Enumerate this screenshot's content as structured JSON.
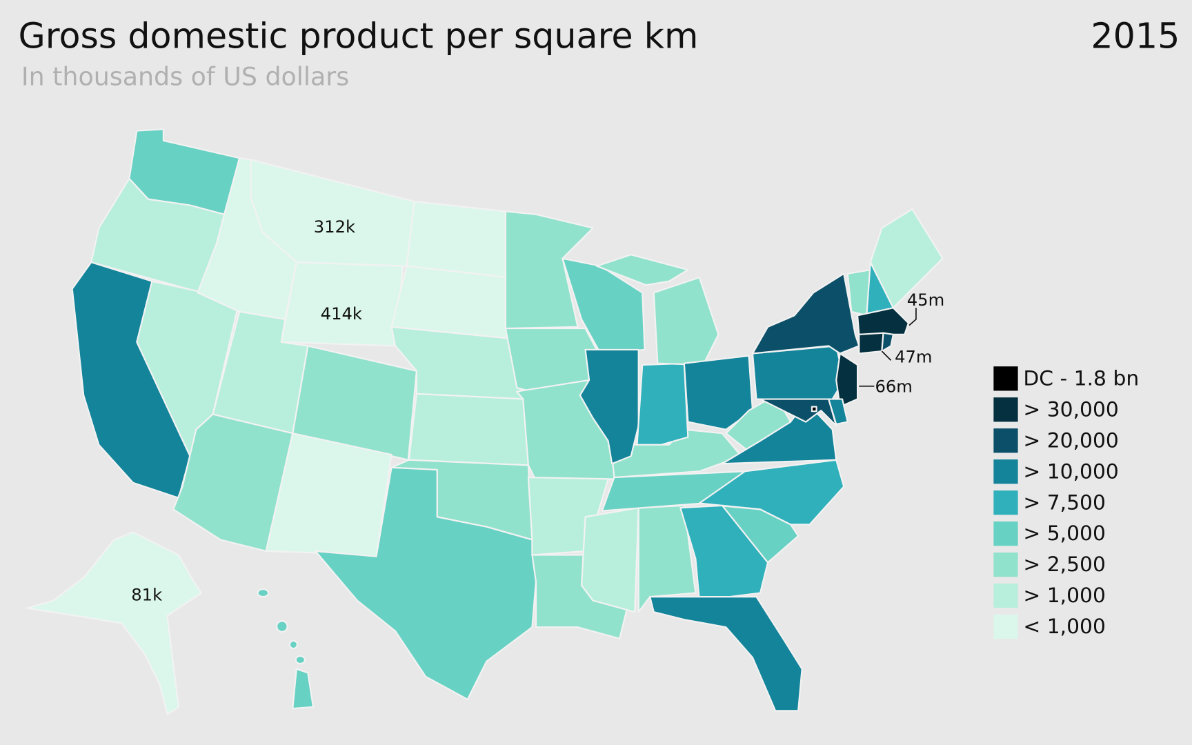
{
  "title": "Gross domestic product per square km",
  "subtitle": "In thousands of US dollars",
  "year": "2015",
  "legend": {
    "items": [
      {
        "label": "DC - 1.8 bn",
        "color": "#000000"
      },
      {
        "label": "> 30,000",
        "color": "#05303f"
      },
      {
        "label": "> 20,000",
        "color": "#0b5068"
      },
      {
        "label": "> 10,000",
        "color": "#13849a"
      },
      {
        "label": "> 7,500",
        "color": "#2fb0bb"
      },
      {
        "label": "> 5,000",
        "color": "#67d1c3"
      },
      {
        "label": "> 2,500",
        "color": "#91e2cc"
      },
      {
        "label": "> 1,000",
        "color": "#b8efdc"
      },
      {
        "label": "< 1,000",
        "color": "#dbf7ec"
      }
    ]
  },
  "annotations": [
    "312k",
    "414k",
    "81k",
    "45m",
    "47m",
    "66m"
  ]
}
